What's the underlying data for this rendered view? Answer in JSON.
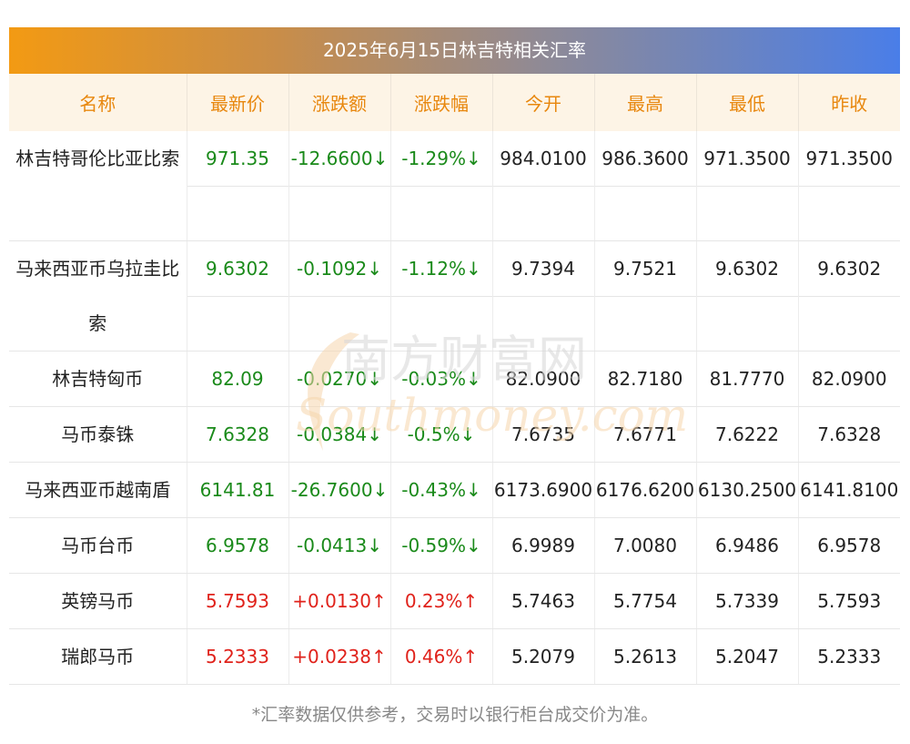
{
  "title": "2025年6月15日林吉特相关汇率",
  "headers": [
    "名称",
    "最新价",
    "涨跌额",
    "涨跌幅",
    "今开",
    "最高",
    "最低",
    "昨收"
  ],
  "rows": [
    {
      "name": "林吉特哥伦比亚比索",
      "latest": "971.35",
      "change": "-12.6600↓",
      "pct": "-1.29%↓",
      "open": "984.0100",
      "high": "986.3600",
      "low": "971.3500",
      "prev": "971.3500",
      "dir": "down"
    },
    {
      "name": "马来西亚币乌拉圭比索",
      "latest": "9.6302",
      "change": "-0.1092↓",
      "pct": "-1.12%↓",
      "open": "9.7394",
      "high": "9.7521",
      "low": "9.6302",
      "prev": "9.6302",
      "dir": "down"
    },
    {
      "name": "林吉特匈币",
      "latest": "82.09",
      "change": "-0.0270↓",
      "pct": "-0.03%↓",
      "open": "82.0900",
      "high": "82.7180",
      "low": "81.7770",
      "prev": "82.0900",
      "dir": "down"
    },
    {
      "name": "马币泰铢",
      "latest": "7.6328",
      "change": "-0.0384↓",
      "pct": "-0.5%↓",
      "open": "7.6735",
      "high": "7.6771",
      "low": "7.6222",
      "prev": "7.6328",
      "dir": "down"
    },
    {
      "name": "马来西亚币越南盾",
      "latest": "6141.81",
      "change": "-26.7600↓",
      "pct": "-0.43%↓",
      "open": "6173.6900",
      "high": "6176.6200",
      "low": "6130.2500",
      "prev": "6141.8100",
      "dir": "down"
    },
    {
      "name": "马币台币",
      "latest": "6.9578",
      "change": "-0.0413↓",
      "pct": "-0.59%↓",
      "open": "6.9989",
      "high": "7.0080",
      "low": "6.9486",
      "prev": "6.9578",
      "dir": "down"
    },
    {
      "name": "英镑马币",
      "latest": "5.7593",
      "change": "+0.0130↑",
      "pct": "0.23%↑",
      "open": "5.7463",
      "high": "5.7754",
      "low": "5.7339",
      "prev": "5.7593",
      "dir": "up"
    },
    {
      "name": "瑞郎马币",
      "latest": "5.2333",
      "change": "+0.0238↑",
      "pct": "0.46%↑",
      "open": "5.2079",
      "high": "5.2613",
      "low": "5.2047",
      "prev": "5.2333",
      "dir": "up"
    }
  ],
  "watermark": {
    "cn": "南方财富网",
    "en": "Southmoney.com"
  },
  "footnote": "*汇率数据仅供参考，交易时以银行柜台成交价为准。",
  "colors": {
    "up": "#e0221b",
    "down": "#1a8a1a",
    "header_text": "#e8870e",
    "gradient_start": "#f39a13",
    "gradient_end": "#4a7ee8"
  }
}
